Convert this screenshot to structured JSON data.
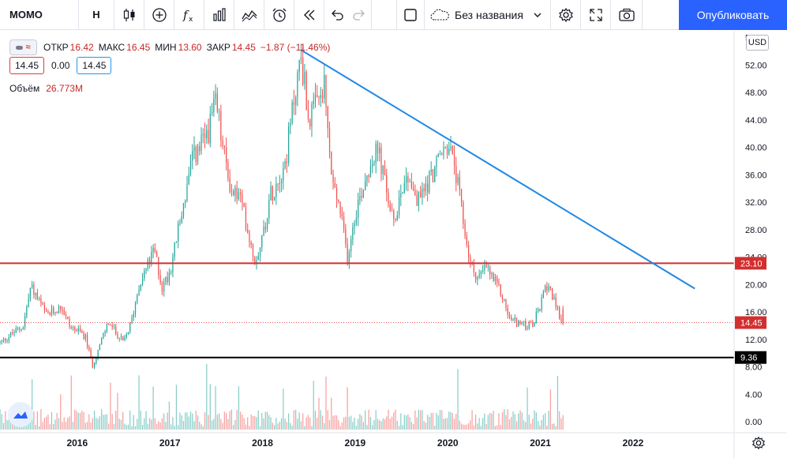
{
  "toolbar": {
    "symbol": "MOMO",
    "interval": "H",
    "layout_name": "Без названия",
    "publish_label": "Опубликовать",
    "icons": [
      "bars-style-icon",
      "add-indicator-icon",
      "fx-icon",
      "templates-icon",
      "compare-icon",
      "alert-clock-icon",
      "replay-icon",
      "undo-icon",
      "redo-icon"
    ]
  },
  "legend": {
    "open_label": "ОТКР",
    "open": "16.42",
    "high_label": "МАКС",
    "high": "16.45",
    "low_label": "МИН",
    "low": "13.60",
    "close_label": "ЗАКР",
    "close": "14.45",
    "change": "−1.87 (−11.46%)",
    "bid": "14.45",
    "spread": "0.00",
    "ask": "14.45",
    "volume_label": "Объём",
    "volume": "26.773M"
  },
  "currency": "USD",
  "colors": {
    "up": "#26a69a",
    "down": "#ef5350",
    "trendline": "#1e88e5",
    "resistance": "#d32f2f",
    "support": "#000000",
    "accent": "#2962ff"
  },
  "price_axis": {
    "ticks": [
      "56.00",
      "52.00",
      "48.00",
      "44.00",
      "40.00",
      "36.00",
      "32.00",
      "28.00",
      "24.00",
      "20.00",
      "16.00",
      "12.00",
      "8.00",
      "4.00",
      "0.00"
    ],
    "labels": [
      {
        "value": "23.10",
        "color": "#d32f2f"
      },
      {
        "value": "14.45",
        "color": "#d32f2f"
      },
      {
        "value": "9.36",
        "color": "#000000"
      }
    ]
  },
  "time_axis": {
    "ticks": [
      "2016",
      "2017",
      "2018",
      "2019",
      "2020",
      "2021",
      "2022"
    ]
  },
  "chart_data": {
    "type": "candlestick",
    "symbol": "MOMO",
    "currency": "USD",
    "ylim": [
      0,
      57
    ],
    "x_range": [
      "2015-03",
      "2022-10"
    ],
    "price_path": [
      [
        "2015-03",
        11.5
      ],
      [
        "2015-06",
        14.0
      ],
      [
        "2015-07",
        19.8
      ],
      [
        "2015-09",
        15.5
      ],
      [
        "2015-11",
        16.8
      ],
      [
        "2015-12",
        14.0
      ],
      [
        "2016-02",
        12.5
      ],
      [
        "2016-03",
        8.2
      ],
      [
        "2016-05",
        14.5
      ],
      [
        "2016-07",
        11.5
      ],
      [
        "2016-08",
        14.5
      ],
      [
        "2016-09",
        20.0
      ],
      [
        "2016-10",
        22.5
      ],
      [
        "2016-11",
        25.0
      ],
      [
        "2016-12",
        19.5
      ],
      [
        "2017-01",
        22.0
      ],
      [
        "2017-03",
        33.0
      ],
      [
        "2017-04",
        38.5
      ],
      [
        "2017-05",
        40.0
      ],
      [
        "2017-06",
        42.5
      ],
      [
        "2017-07",
        46.5
      ],
      [
        "2017-08",
        39.0
      ],
      [
        "2017-09",
        33.5
      ],
      [
        "2017-10",
        33.0
      ],
      [
        "2017-11",
        28.5
      ],
      [
        "2017-12",
        23.5
      ],
      [
        "2018-01",
        27.0
      ],
      [
        "2018-02",
        33.0
      ],
      [
        "2018-03",
        35.5
      ],
      [
        "2018-04",
        38.0
      ],
      [
        "2018-05",
        46.5
      ],
      [
        "2018-06",
        53.5
      ],
      [
        "2018-07",
        44.0
      ],
      [
        "2018-08",
        46.0
      ],
      [
        "2018-09",
        48.5
      ],
      [
        "2018-10",
        35.0
      ],
      [
        "2018-11",
        31.0
      ],
      [
        "2018-12",
        24.0
      ],
      [
        "2019-01",
        30.5
      ],
      [
        "2019-03",
        38.0
      ],
      [
        "2019-04",
        39.5
      ],
      [
        "2019-05",
        34.0
      ],
      [
        "2019-06",
        28.5
      ],
      [
        "2019-07",
        34.5
      ],
      [
        "2019-08",
        36.0
      ],
      [
        "2019-09",
        32.0
      ],
      [
        "2019-10",
        34.0
      ],
      [
        "2019-12",
        38.5
      ],
      [
        "2020-01",
        40.5
      ],
      [
        "2020-02",
        36.5
      ],
      [
        "2020-03",
        29.0
      ],
      [
        "2020-04",
        22.5
      ],
      [
        "2020-05",
        21.0
      ],
      [
        "2020-06",
        22.5
      ],
      [
        "2020-07",
        20.5
      ],
      [
        "2020-08",
        18.5
      ],
      [
        "2020-09",
        15.0
      ],
      [
        "2020-10",
        14.5
      ],
      [
        "2020-11",
        14.0
      ],
      [
        "2020-12",
        14.0
      ],
      [
        "2021-01",
        17.0
      ],
      [
        "2021-02",
        20.5
      ],
      [
        "2021-03",
        16.5
      ],
      [
        "2021-04",
        14.45
      ]
    ],
    "last_price": 14.45,
    "lines": [
      {
        "kind": "horizontal",
        "price": 23.1,
        "color": "#d32f2f"
      },
      {
        "kind": "horizontal",
        "price": 9.36,
        "color": "#000000"
      },
      {
        "kind": "trend",
        "from": [
          "2018-06",
          54.2
        ],
        "to": [
          "2022-09",
          19.4
        ],
        "color": "#1e88e5"
      }
    ]
  }
}
